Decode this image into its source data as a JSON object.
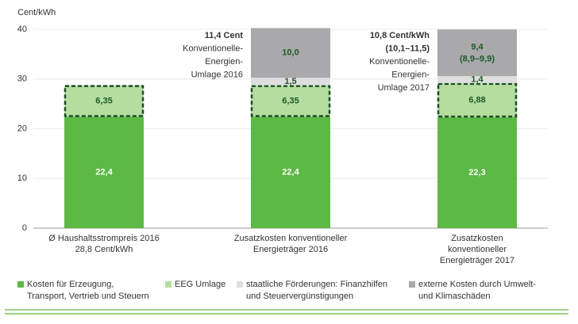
{
  "chart_data": {
    "type": "stacked_bar",
    "y_label": "Cent/kWh",
    "categories": [
      [
        "Ø Haushaltsstrompreis 2016",
        "28,8 Cent/kWh"
      ],
      [
        "Zusatzkosten konventioneller",
        "Energieträger 2016"
      ],
      [
        "Zusatzkosten",
        "konventioneller",
        "Energieträger 2017"
      ]
    ],
    "series": [
      {
        "name": [
          "Kosten für Erzeugung,",
          "Transport, Vertrieb und Steuern"
        ],
        "color": "#5cb944",
        "label_color": "#ffffff",
        "values": [
          22.4,
          22.4,
          22.3
        ],
        "value_labels": [
          "22,4",
          "22,4",
          "22,3"
        ]
      },
      {
        "name": [
          "EEG Umlage"
        ],
        "color": "#b4dd9f",
        "label_color": "#1e5a28",
        "dashed_outline": "#1e4d2a",
        "values": [
          6.35,
          6.35,
          6.88
        ],
        "value_labels": [
          "6,35",
          "6,35",
          "6,88"
        ]
      },
      {
        "name": [
          "staatliche Förderungen: Finanzhilfen",
          "und Steuervergünstigungen"
        ],
        "color": "#dedede",
        "label_color": "#1e5a28",
        "values": [
          null,
          1.5,
          1.4
        ],
        "value_labels": [
          null,
          "1,5",
          "1,4"
        ]
      },
      {
        "name": [
          "externe Kosten durch Umwelt-",
          "und Klimaschäden"
        ],
        "color": "#a9a9ab",
        "label_color": "#1e5a28",
        "values": [
          null,
          10.0,
          9.4
        ],
        "value_labels": [
          null,
          "10,0",
          "9,4"
        ],
        "range_labels": [
          null,
          null,
          "(8,9–9,9)"
        ]
      }
    ],
    "annotations": [
      {
        "category": 1,
        "bold": 1,
        "lines": [
          "11,4 Cent",
          "Konventionelle-",
          "Energien-",
          "Umlage 2016"
        ]
      },
      {
        "category": 2,
        "bold": 2,
        "lines": [
          "10,8 Cent/kWh",
          "(10,1–11,5)",
          "Konventionelle-",
          "Energien-",
          "Umlage 2017"
        ]
      }
    ],
    "ylim": [
      0,
      40
    ],
    "yticks": [
      0,
      10,
      20,
      30,
      40
    ],
    "grid": true
  }
}
